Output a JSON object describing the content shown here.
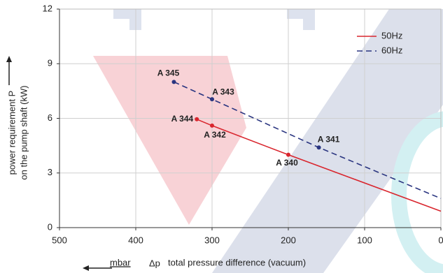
{
  "chart_data": {
    "type": "line",
    "y_label": [
      "power requirement P",
      "on the pump shaft (kW)"
    ],
    "x_label": "total pressure difference (vacuum)",
    "x_unit": "mbar",
    "x_symbol": "Δp",
    "xlim": [
      500,
      0
    ],
    "xticks": [
      500,
      400,
      300,
      200,
      100,
      0
    ],
    "ylim": [
      0,
      12
    ],
    "yticks": [
      0,
      3,
      6,
      9,
      12
    ],
    "grid": true,
    "legend": "upper right",
    "series": [
      {
        "name": "50Hz",
        "color": "#d9262e",
        "dash": false,
        "label_color": "#d9262e",
        "x": [
          320,
          300,
          200,
          0
        ],
        "values": [
          5.95,
          5.6,
          4.0,
          0.9
        ],
        "point_labels": [
          "A 344",
          "A 342",
          "A 340",
          null
        ]
      },
      {
        "name": "60Hz",
        "color": "#2a3580",
        "dash": true,
        "label_color": "#2a7ab8",
        "x": [
          350,
          300,
          160,
          0
        ],
        "values": [
          8.0,
          7.05,
          4.4,
          1.6
        ],
        "point_labels": [
          "A 345",
          "A 343",
          "A 341",
          null
        ]
      }
    ]
  }
}
